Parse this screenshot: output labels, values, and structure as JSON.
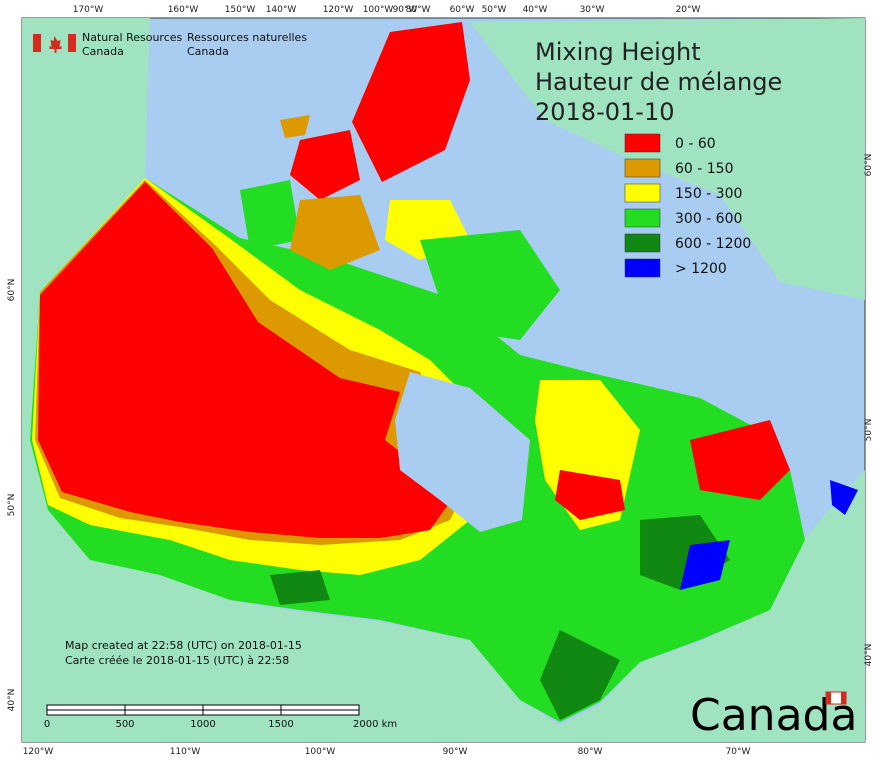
{
  "header": {
    "logo_en": [
      "Natural Resources",
      "Canada"
    ],
    "logo_fr": [
      "Ressources naturelles",
      "Canada"
    ]
  },
  "title": [
    "Mixing Height",
    "Hauteur de mélange",
    "2018-01-10"
  ],
  "legend": [
    {
      "label": "0 - 60",
      "color": "#ff0000"
    },
    {
      "label": "60 - 150",
      "color": "#dd9900"
    },
    {
      "label": "150 - 300",
      "color": "#ffff00"
    },
    {
      "label": "300 - 600",
      "color": "#22dd22"
    },
    {
      "label": "600 - 1200",
      "color": "#118811"
    },
    {
      "label": "> 1200",
      "color": "#0000ff"
    }
  ],
  "graticule": {
    "top": [
      "170°W",
      "160°W",
      "150°W",
      "140°W",
      "120°W",
      "100°W",
      "90°W",
      "80°W",
      "60°W",
      "50°W",
      "40°W",
      "30°W",
      "20°W"
    ],
    "bottom": [
      "120°W",
      "110°W",
      "100°W",
      "90°W",
      "80°W",
      "70°W"
    ],
    "left": [
      "60°N",
      "50°N",
      "40°N"
    ],
    "right": [
      "60°N",
      "50°N",
      "40°N"
    ]
  },
  "notes": [
    "Map created at 22:58 (UTC) on 2018-01-15",
    "Carte créée le 2018-01-15 (UTC) à 22:58"
  ],
  "scale": [
    "0",
    "500",
    "1000",
    "1500",
    "2000 km"
  ],
  "wordmark": "Canada"
}
